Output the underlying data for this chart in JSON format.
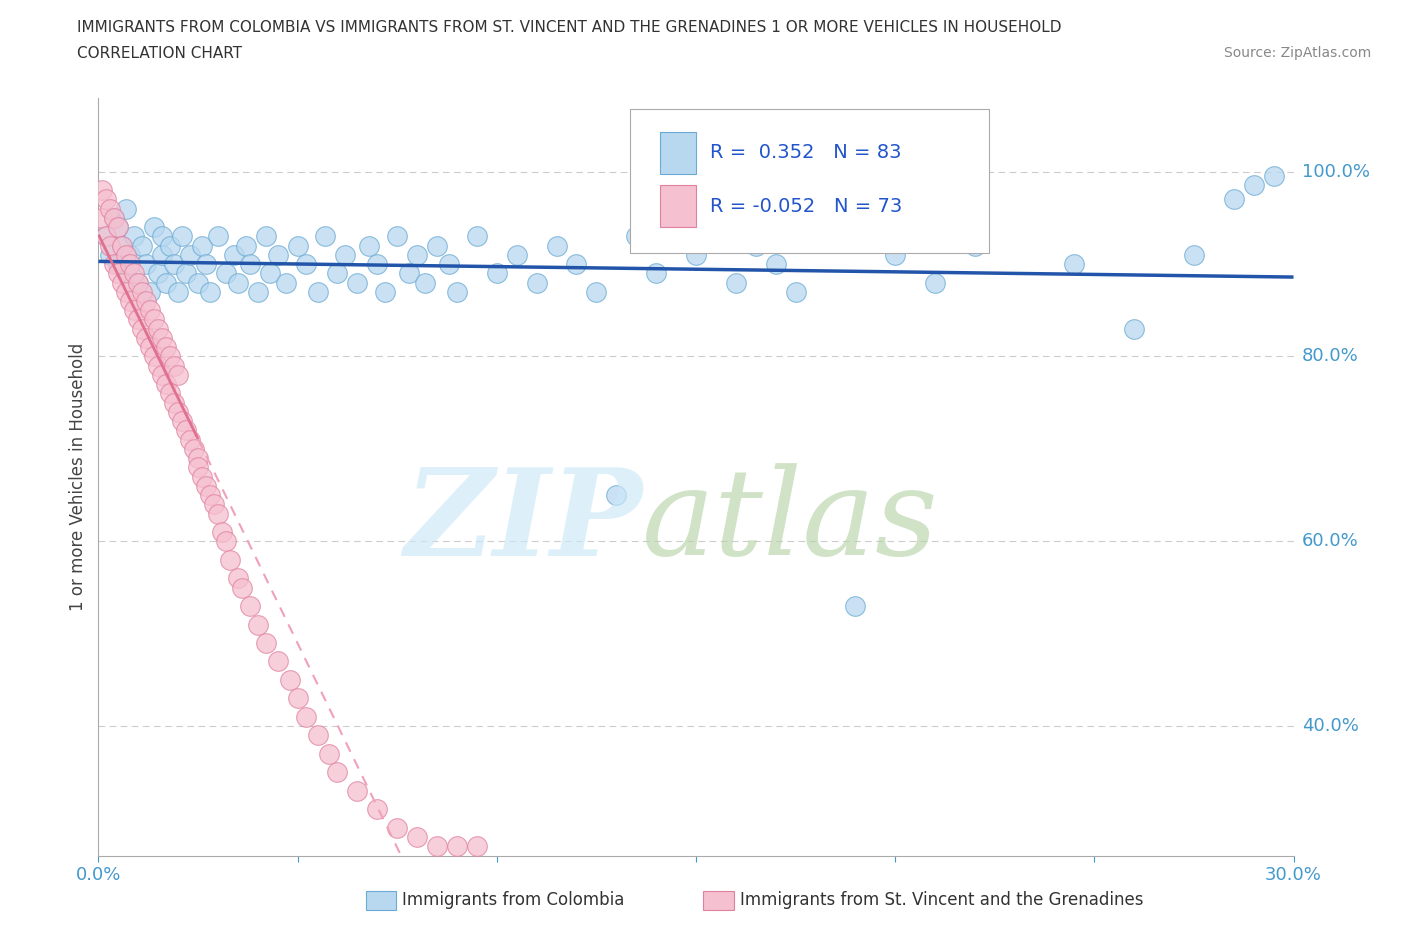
{
  "title_line1": "IMMIGRANTS FROM COLOMBIA VS IMMIGRANTS FROM ST. VINCENT AND THE GRENADINES 1 OR MORE VEHICLES IN HOUSEHOLD",
  "title_line2": "CORRELATION CHART",
  "source": "Source: ZipAtlas.com",
  "ylabel": "1 or more Vehicles in Household",
  "xlim": [
    0.0,
    0.3
  ],
  "ylim": [
    0.26,
    1.08
  ],
  "colombia_R": 0.352,
  "colombia_N": 83,
  "stvincent_R": -0.052,
  "stvincent_N": 73,
  "colombia_color": "#b8d8f0",
  "colombia_edge": "#6aaad4",
  "stvincent_color": "#f5c0d0",
  "stvincent_edge": "#e080a0",
  "trend_colombia_color": "#2255aa",
  "trend_stvincent_solid_color": "#e07090",
  "trend_stvincent_dashed_color": "#f0a0b8",
  "grid_color": "#cccccc",
  "ytick_right_vals": [
    1.0,
    0.8,
    0.6,
    0.4
  ],
  "ytick_right_labels": [
    "100.0%",
    "80.0%",
    "60.0%",
    "40.0%"
  ],
  "bottom_label1": "Immigrants from Colombia",
  "bottom_label2": "Immigrants from St. Vincent and the Grenadines",
  "colombia_x": [
    0.002,
    0.003,
    0.004,
    0.005,
    0.005,
    0.006,
    0.007,
    0.007,
    0.008,
    0.009,
    0.01,
    0.011,
    0.012,
    0.013,
    0.014,
    0.015,
    0.016,
    0.016,
    0.017,
    0.018,
    0.019,
    0.02,
    0.021,
    0.022,
    0.023,
    0.025,
    0.026,
    0.027,
    0.028,
    0.03,
    0.032,
    0.034,
    0.035,
    0.037,
    0.038,
    0.04,
    0.042,
    0.043,
    0.045,
    0.047,
    0.05,
    0.052,
    0.055,
    0.057,
    0.06,
    0.062,
    0.065,
    0.068,
    0.07,
    0.072,
    0.075,
    0.078,
    0.08,
    0.082,
    0.085,
    0.088,
    0.09,
    0.095,
    0.1,
    0.105,
    0.11,
    0.115,
    0.12,
    0.125,
    0.13,
    0.135,
    0.14,
    0.15,
    0.16,
    0.165,
    0.17,
    0.175,
    0.18,
    0.19,
    0.2,
    0.21,
    0.22,
    0.245,
    0.26,
    0.275,
    0.285,
    0.29,
    0.295
  ],
  "colombia_y": [
    0.93,
    0.91,
    0.95,
    0.9,
    0.94,
    0.92,
    0.89,
    0.96,
    0.91,
    0.93,
    0.88,
    0.92,
    0.9,
    0.87,
    0.94,
    0.89,
    0.91,
    0.93,
    0.88,
    0.92,
    0.9,
    0.87,
    0.93,
    0.89,
    0.91,
    0.88,
    0.92,
    0.9,
    0.87,
    0.93,
    0.89,
    0.91,
    0.88,
    0.92,
    0.9,
    0.87,
    0.93,
    0.89,
    0.91,
    0.88,
    0.92,
    0.9,
    0.87,
    0.93,
    0.89,
    0.91,
    0.88,
    0.92,
    0.9,
    0.87,
    0.93,
    0.89,
    0.91,
    0.88,
    0.92,
    0.9,
    0.87,
    0.93,
    0.89,
    0.91,
    0.88,
    0.92,
    0.9,
    0.87,
    0.65,
    0.93,
    0.89,
    0.91,
    0.88,
    0.92,
    0.9,
    0.87,
    0.93,
    0.53,
    0.91,
    0.88,
    0.92,
    0.9,
    0.83,
    0.91,
    0.97,
    0.985,
    0.995
  ],
  "stvincent_x": [
    0.001,
    0.001,
    0.002,
    0.002,
    0.003,
    0.003,
    0.004,
    0.004,
    0.005,
    0.005,
    0.006,
    0.006,
    0.007,
    0.007,
    0.008,
    0.008,
    0.009,
    0.009,
    0.01,
    0.01,
    0.011,
    0.011,
    0.012,
    0.012,
    0.013,
    0.013,
    0.014,
    0.014,
    0.015,
    0.015,
    0.016,
    0.016,
    0.017,
    0.017,
    0.018,
    0.018,
    0.019,
    0.019,
    0.02,
    0.02,
    0.021,
    0.022,
    0.023,
    0.024,
    0.025,
    0.025,
    0.026,
    0.027,
    0.028,
    0.029,
    0.03,
    0.031,
    0.032,
    0.033,
    0.035,
    0.036,
    0.038,
    0.04,
    0.042,
    0.045,
    0.048,
    0.05,
    0.052,
    0.055,
    0.058,
    0.06,
    0.065,
    0.07,
    0.075,
    0.08,
    0.085,
    0.09,
    0.095
  ],
  "stvincent_y": [
    0.98,
    0.95,
    0.97,
    0.93,
    0.96,
    0.92,
    0.95,
    0.9,
    0.94,
    0.89,
    0.92,
    0.88,
    0.91,
    0.87,
    0.9,
    0.86,
    0.89,
    0.85,
    0.88,
    0.84,
    0.87,
    0.83,
    0.86,
    0.82,
    0.85,
    0.81,
    0.84,
    0.8,
    0.83,
    0.79,
    0.82,
    0.78,
    0.81,
    0.77,
    0.8,
    0.76,
    0.79,
    0.75,
    0.78,
    0.74,
    0.73,
    0.72,
    0.71,
    0.7,
    0.69,
    0.68,
    0.67,
    0.66,
    0.65,
    0.64,
    0.63,
    0.61,
    0.6,
    0.58,
    0.56,
    0.55,
    0.53,
    0.51,
    0.49,
    0.47,
    0.45,
    0.43,
    0.41,
    0.39,
    0.37,
    0.35,
    0.33,
    0.31,
    0.29,
    0.28,
    0.27,
    0.27,
    0.27
  ]
}
